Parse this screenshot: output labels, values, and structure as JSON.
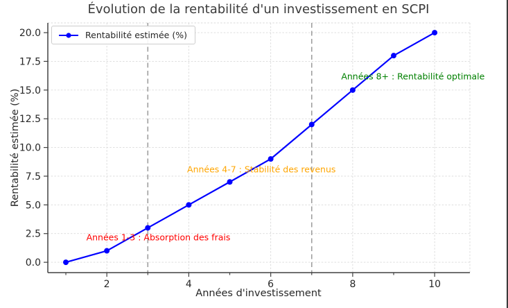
{
  "chart_data": {
    "type": "line",
    "title": "Évolution de la rentabilité d'un investissement en SCPI",
    "xlabel": "Années d'investissement",
    "ylabel": "Rentabilité estimée (%)",
    "xlim": [
      0.56,
      10.86
    ],
    "ylim": [
      -0.9,
      20.85
    ],
    "x": [
      1,
      2,
      3,
      4,
      5,
      6,
      7,
      8,
      9,
      10
    ],
    "series": [
      {
        "name": "Rentabilité estimée (%)",
        "color": "#0000ff",
        "values": [
          0,
          1,
          3,
          5,
          7,
          9,
          12,
          15,
          18,
          20
        ]
      }
    ],
    "x_ticks": [
      2,
      4,
      6,
      8,
      10
    ],
    "x_tick_labels": [
      "2",
      "4",
      "6",
      "8",
      "10"
    ],
    "x_minor_ticks": [
      1,
      3,
      5,
      7,
      9
    ],
    "y_ticks": [
      0,
      2.5,
      5,
      7.5,
      10,
      12.5,
      15,
      17.5,
      20
    ],
    "y_tick_labels": [
      "0.0",
      "2.5",
      "5.0",
      "7.5",
      "10.0",
      "12.5",
      "15.0",
      "17.5",
      "20.0"
    ],
    "grid": true,
    "legend": {
      "position": "upper left",
      "label": "Rentabilité estimée (%)"
    },
    "vlines": [
      {
        "x": 3,
        "color": "#9f9f9f",
        "style": "dashed"
      },
      {
        "x": 7,
        "color": "#9f9f9f",
        "style": "dashed"
      }
    ],
    "annotations": [
      {
        "text": "Années 1-3 : Absorption des frais",
        "color": "#ff0000",
        "x": 1.5,
        "y": 2.2
      },
      {
        "text": "Années 4-7 : Stabilité des revenus",
        "color": "#ffa500",
        "x": 3.96,
        "y": 8.1
      },
      {
        "text": "Années 8+ : Rentabilité optimale",
        "color": "#008000",
        "x": 7.72,
        "y": 16.2
      }
    ],
    "colors": {
      "grid": "#d9d9d9",
      "spine": "#404040",
      "tick_label": "#262626",
      "title": "#3a3a3a",
      "figure_right_border": "#3a3a3a"
    }
  }
}
